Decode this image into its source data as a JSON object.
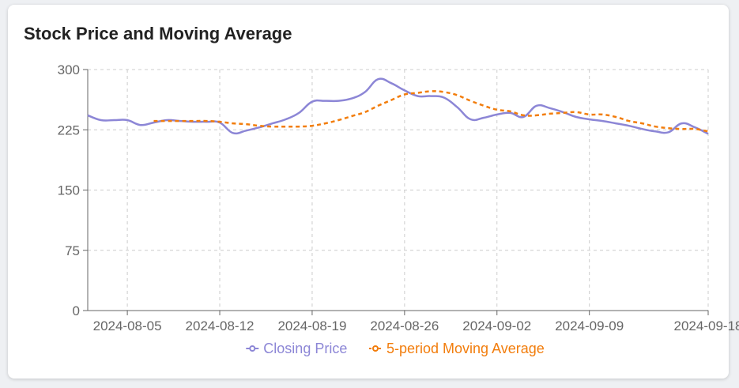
{
  "chart_data": {
    "type": "line",
    "title": "Stock Price and Moving Average",
    "xlabel": "",
    "ylabel": "",
    "ylim": [
      0,
      300
    ],
    "yticks": [
      "0",
      "75",
      "150",
      "225",
      "300"
    ],
    "xticks": [
      "2024-08-05",
      "2024-08-12",
      "2024-08-19",
      "2024-08-26",
      "2024-09-02",
      "2024-09-09",
      "2024-09-18"
    ],
    "grid": true,
    "legend_position": "bottom",
    "x": [
      "2024-08-02",
      "2024-08-03",
      "2024-08-04",
      "2024-08-05",
      "2024-08-06",
      "2024-08-07",
      "2024-08-08",
      "2024-08-09",
      "2024-08-10",
      "2024-08-11",
      "2024-08-12",
      "2024-08-13",
      "2024-08-14",
      "2024-08-15",
      "2024-08-16",
      "2024-08-17",
      "2024-08-18",
      "2024-08-19",
      "2024-08-20",
      "2024-08-21",
      "2024-08-22",
      "2024-08-23",
      "2024-08-24",
      "2024-08-25",
      "2024-08-26",
      "2024-08-27",
      "2024-08-28",
      "2024-08-29",
      "2024-08-30",
      "2024-08-31",
      "2024-09-01",
      "2024-09-02",
      "2024-09-03",
      "2024-09-04",
      "2024-09-05",
      "2024-09-06",
      "2024-09-07",
      "2024-09-08",
      "2024-09-09",
      "2024-09-10",
      "2024-09-11",
      "2024-09-12",
      "2024-09-13",
      "2024-09-14",
      "2024-09-15",
      "2024-09-16",
      "2024-09-17",
      "2024-09-18"
    ],
    "series": [
      {
        "name": "Closing Price",
        "color": "#8c86d6",
        "dashed": false,
        "values": [
          243,
          237,
          237,
          237,
          231,
          234,
          237,
          236,
          235,
          235,
          234,
          221,
          224,
          228,
          233,
          238,
          246,
          260,
          261,
          261,
          264,
          272,
          288,
          283,
          274,
          267,
          267,
          265,
          253,
          238,
          240,
          244,
          246,
          241,
          255,
          252,
          247,
          241,
          238,
          236,
          233,
          230,
          226,
          223,
          222,
          233,
          228,
          220
        ]
      },
      {
        "name": "5-period Moving Average",
        "color": "#f27d0c",
        "dashed": true,
        "values": [
          null,
          null,
          null,
          null,
          null,
          236,
          236,
          236,
          236,
          236,
          235,
          233,
          232,
          230,
          229,
          229,
          229,
          230,
          233,
          237,
          242,
          247,
          255,
          262,
          269,
          271,
          273,
          272,
          268,
          261,
          255,
          250,
          248,
          243,
          243,
          245,
          246,
          247,
          244,
          244,
          241,
          236,
          233,
          229,
          227,
          226,
          226,
          223
        ]
      }
    ]
  }
}
